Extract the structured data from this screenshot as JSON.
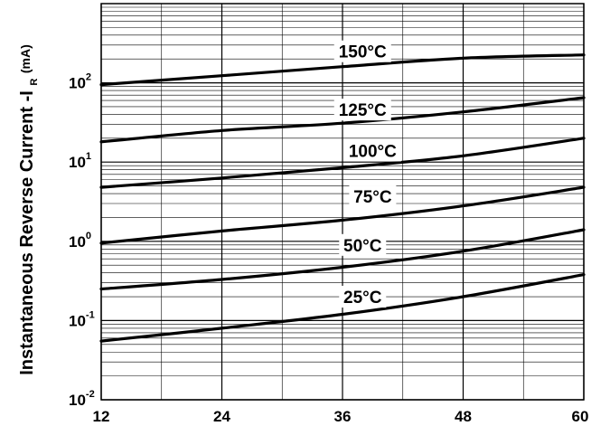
{
  "chart_data": {
    "type": "line",
    "title": "",
    "xlabel": "",
    "ylabel": "Instantaneous Reverse Current -I",
    "ylabel_subscript": "R",
    "ylabel_unit": "(mA)",
    "x_scale": "linear",
    "y_scale": "log",
    "xlim": [
      12,
      60
    ],
    "ylim": [
      0.01,
      1000
    ],
    "x_ticks": [
      {
        "value": 12,
        "label": "12"
      },
      {
        "value": 24,
        "label": "24"
      },
      {
        "value": 36,
        "label": "36"
      },
      {
        "value": 48,
        "label": "48"
      },
      {
        "value": 60,
        "label": "60"
      }
    ],
    "y_ticks": [
      {
        "value": 100,
        "base": "10",
        "exp": "2"
      },
      {
        "value": 10,
        "base": "10",
        "exp": "1"
      },
      {
        "value": 1,
        "base": "10",
        "exp": "0"
      },
      {
        "value": 0.1,
        "base": "10",
        "exp": "-1"
      },
      {
        "value": 0.01,
        "base": "10",
        "exp": "-2"
      }
    ],
    "grid": true,
    "series": [
      {
        "name": "150°C",
        "x": [
          12,
          24,
          36,
          48,
          60
        ],
        "values": [
          95,
          123,
          160,
          205,
          225
        ],
        "label_at": [
          38,
          250
        ]
      },
      {
        "name": "125°C",
        "x": [
          12,
          24,
          36,
          48,
          60
        ],
        "values": [
          18,
          25,
          31,
          43,
          65
        ],
        "label_at": [
          38,
          46
        ]
      },
      {
        "name": "100°C",
        "x": [
          12,
          24,
          36,
          48,
          60
        ],
        "values": [
          4.8,
          6.3,
          8.5,
          12,
          20
        ],
        "label_at": [
          39,
          14
        ]
      },
      {
        "name": "75°C",
        "x": [
          12,
          24,
          36,
          48,
          60
        ],
        "values": [
          0.95,
          1.35,
          1.85,
          2.8,
          4.8
        ],
        "label_at": [
          39,
          3.7
        ]
      },
      {
        "name": "50°C",
        "x": [
          12,
          24,
          36,
          48,
          60
        ],
        "values": [
          0.25,
          0.33,
          0.47,
          0.75,
          1.4
        ],
        "label_at": [
          38,
          0.9
        ]
      },
      {
        "name": "25°C",
        "x": [
          12,
          24,
          36,
          48,
          60
        ],
        "values": [
          0.055,
          0.08,
          0.12,
          0.2,
          0.38
        ],
        "label_at": [
          38,
          0.2
        ]
      }
    ]
  }
}
